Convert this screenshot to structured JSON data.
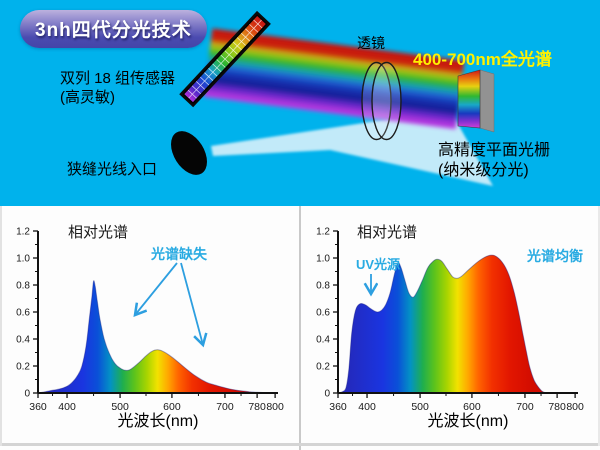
{
  "header": {
    "badge": "3nh四代分光技术",
    "sensor_label": [
      "双列 18 组传感器",
      "(高灵敏)"
    ],
    "slit_label": "狭缝光线入口",
    "lens_label": "透镜",
    "spectrum_label": "400-700nm全光谱",
    "grating_label": [
      "高精度平面光栅",
      "(纳米级分光)"
    ],
    "colors": {
      "background": "#00B2EC",
      "highlight_yellow": "#FFF100",
      "annotation_cyan": "#29ABE2",
      "badge_gradient_top": "#BCB1DE",
      "badge_gradient_bottom": "#4444A8"
    }
  },
  "chart_data": [
    {
      "type": "area",
      "title": "相对光谱",
      "xlabel": "光波长(nm)",
      "ylabel": "",
      "xlim": [
        360,
        800
      ],
      "ylim": [
        0,
        1.2
      ],
      "x_ticks": [
        "360",
        "400",
        "500",
        "600",
        "700",
        "780",
        "800"
      ],
      "y_ticks": [
        "0",
        "0.2",
        "0.4",
        "0.6",
        "0.8",
        "1.0",
        "1.2"
      ],
      "grid": false,
      "annotations": [
        {
          "text": "光谱缺失"
        }
      ],
      "series": [
        {
          "name": "相对光谱",
          "x": [
            360,
            370,
            380,
            390,
            400,
            410,
            420,
            428,
            436,
            442,
            447,
            450,
            453,
            457,
            462,
            470,
            480,
            490,
            500,
            510,
            520,
            535,
            550,
            562,
            572,
            582,
            595,
            610,
            625,
            645,
            665,
            685,
            705,
            730,
            760,
            780,
            800
          ],
          "y": [
            0,
            0.01,
            0.02,
            0.03,
            0.05,
            0.08,
            0.13,
            0.2,
            0.35,
            0.55,
            0.72,
            0.83,
            0.79,
            0.68,
            0.55,
            0.4,
            0.29,
            0.22,
            0.185,
            0.168,
            0.175,
            0.22,
            0.275,
            0.31,
            0.32,
            0.31,
            0.28,
            0.235,
            0.185,
            0.125,
            0.08,
            0.055,
            0.035,
            0.02,
            0.01,
            0.005,
            0
          ]
        }
      ]
    },
    {
      "type": "area",
      "title": "相对光谱",
      "xlabel": "光波长(nm)",
      "ylabel": "",
      "xlim": [
        360,
        800
      ],
      "ylim": [
        0,
        1.2
      ],
      "x_ticks": [
        "360",
        "400",
        "500",
        "600",
        "700",
        "780",
        "800"
      ],
      "y_ticks": [
        "0",
        "0.2",
        "0.4",
        "0.6",
        "0.8",
        "1.0",
        "1.2"
      ],
      "grid": false,
      "annotations": [
        {
          "text": "UV光源"
        },
        {
          "text": "光谱均衡"
        }
      ],
      "series": [
        {
          "name": "相对光谱",
          "x": [
            360,
            366,
            371,
            375,
            379,
            384,
            390,
            397,
            405,
            413,
            420,
            428,
            436,
            444,
            451,
            458,
            464,
            471,
            479,
            487,
            495,
            505,
            515,
            525,
            533,
            542,
            552,
            563,
            572,
            580,
            590,
            600,
            612,
            624,
            634,
            641,
            648,
            656,
            664,
            672,
            680,
            688,
            696,
            704,
            712,
            722,
            732,
            742,
            752
          ],
          "y": [
            0,
            0.01,
            0.04,
            0.18,
            0.45,
            0.61,
            0.66,
            0.655,
            0.63,
            0.61,
            0.6,
            0.615,
            0.66,
            0.75,
            0.87,
            0.965,
            0.93,
            0.84,
            0.74,
            0.71,
            0.755,
            0.84,
            0.93,
            0.975,
            0.99,
            0.975,
            0.92,
            0.86,
            0.85,
            0.865,
            0.9,
            0.935,
            0.975,
            1.005,
            1.02,
            1.02,
            1.005,
            0.975,
            0.925,
            0.85,
            0.74,
            0.6,
            0.44,
            0.3,
            0.19,
            0.1,
            0.05,
            0.015,
            0
          ]
        }
      ]
    }
  ]
}
